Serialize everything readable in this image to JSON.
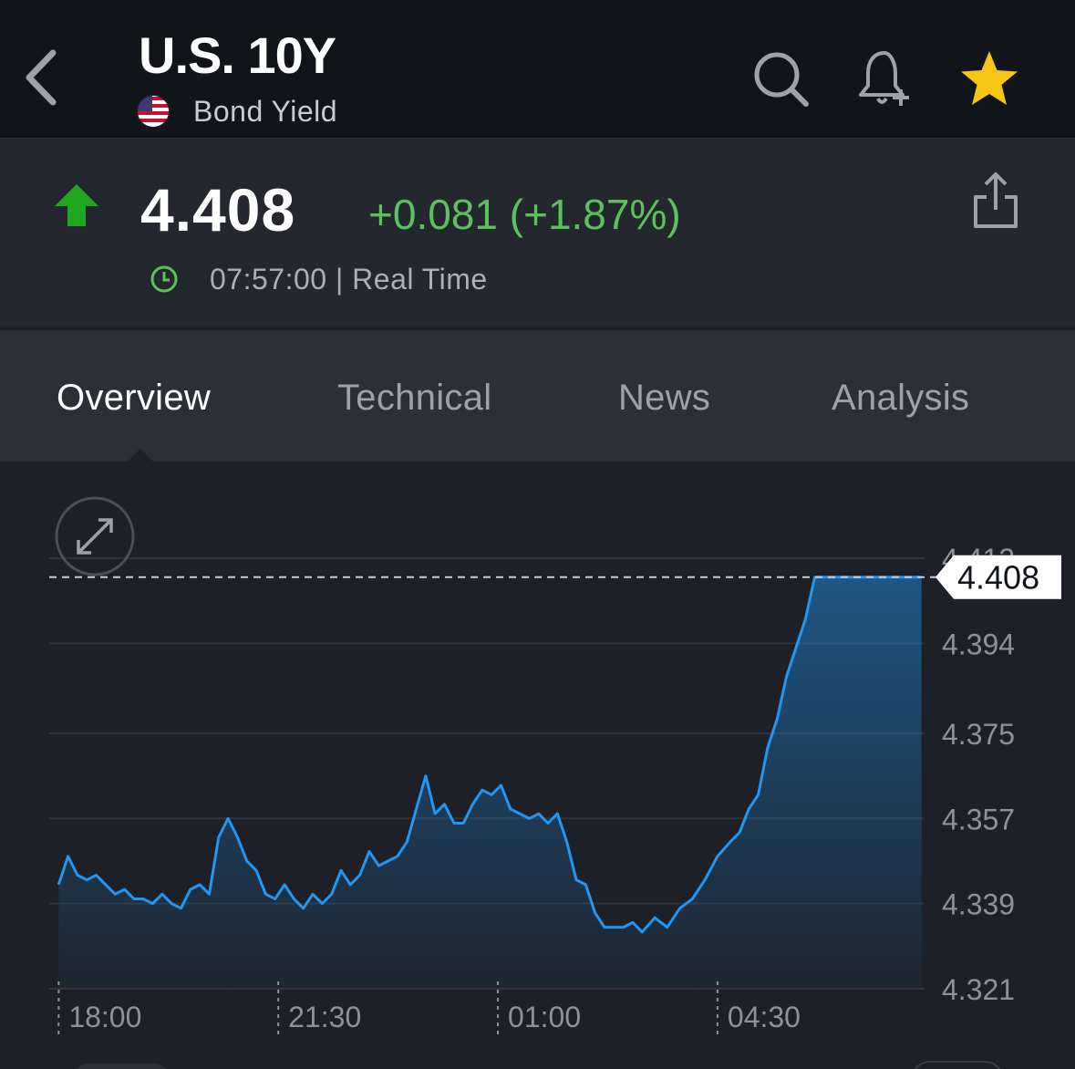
{
  "header": {
    "title": "U.S. 10Y",
    "subtitle": "Bond Yield",
    "icons": {
      "back": "chevron-left-icon",
      "search": "search-icon",
      "alert": "bell-plus-icon",
      "favorite": "star-icon"
    },
    "favorite_color": "#f5c518"
  },
  "quote": {
    "price": "4.408",
    "change": "+0.081 (+1.87%)",
    "time": "07:57:00 | Real Time",
    "direction": "up",
    "up_color": "#1fa51f",
    "change_color": "#5cc15c"
  },
  "tabs": [
    {
      "label": "Overview",
      "active": true
    },
    {
      "label": "Technical",
      "active": false
    },
    {
      "label": "News",
      "active": false
    },
    {
      "label": "Analysis",
      "active": false
    }
  ],
  "chart_data": {
    "type": "area",
    "x_tick_labels": [
      "18:00",
      "21:30",
      "01:00",
      "04:30"
    ],
    "x_ticks": [
      0,
      3.5,
      7.0,
      10.5
    ],
    "x_range": [
      -0.15,
      13.8
    ],
    "y_tick_labels": [
      "4.412",
      "4.394",
      "4.375",
      "4.357",
      "4.339",
      "4.321"
    ],
    "ylim": [
      4.321,
      4.412
    ],
    "last_value_label": "4.408",
    "line_color": "#2196f3",
    "grid": true,
    "series": [
      {
        "x": [
          0,
          0.15,
          0.3,
          0.45,
          0.6,
          0.75,
          0.9,
          1.05,
          1.2,
          1.35,
          1.5,
          1.65,
          1.8,
          1.95,
          2.1,
          2.25,
          2.4,
          2.55,
          2.7,
          2.85,
          3.0,
          3.15,
          3.3,
          3.45,
          3.6,
          3.75,
          3.9,
          4.05,
          4.2,
          4.35,
          4.5,
          4.65,
          4.8,
          4.95,
          5.1,
          5.25,
          5.4,
          5.55,
          5.7,
          5.85,
          6.0,
          6.15,
          6.3,
          6.45,
          6.6,
          6.75,
          6.9,
          7.05,
          7.2,
          7.35,
          7.5,
          7.65,
          7.8,
          7.95,
          8.1,
          8.25,
          8.4,
          8.55,
          8.7,
          8.85,
          9.0,
          9.15,
          9.3,
          9.5,
          9.7,
          9.9,
          10.1,
          10.3,
          10.5,
          10.7,
          10.85,
          11.0,
          11.15,
          11.3,
          11.45,
          11.6,
          11.75,
          11.9,
          12.05,
          12.2,
          12.35,
          12.5,
          12.65,
          12.8,
          12.95,
          13.05,
          13.15,
          13.25,
          13.35,
          13.45,
          13.6,
          13.75
        ],
        "y": [
          4.343,
          4.349,
          4.345,
          4.344,
          4.345,
          4.343,
          4.341,
          4.342,
          4.34,
          4.34,
          4.339,
          4.341,
          4.339,
          4.338,
          4.342,
          4.343,
          4.341,
          4.353,
          4.357,
          4.353,
          4.348,
          4.346,
          4.341,
          4.34,
          4.343,
          4.34,
          4.338,
          4.341,
          4.339,
          4.341,
          4.346,
          4.343,
          4.345,
          4.35,
          4.347,
          4.348,
          4.349,
          4.352,
          4.359,
          4.366,
          4.358,
          4.36,
          4.356,
          4.356,
          4.36,
          4.363,
          4.362,
          4.364,
          4.359,
          4.358,
          4.357,
          4.358,
          4.356,
          4.358,
          4.352,
          4.344,
          4.343,
          4.337,
          4.334,
          4.334,
          4.334,
          4.335,
          4.333,
          4.336,
          4.334,
          4.338,
          4.34,
          4.344,
          4.349,
          4.352,
          4.354,
          4.359,
          4.362,
          4.372,
          4.378,
          4.387,
          4.393,
          4.399,
          4.408,
          4.408,
          4.408,
          4.408,
          4.408,
          4.408,
          4.408,
          4.408,
          4.408,
          4.408,
          4.408,
          4.408,
          4.408,
          4.408
        ]
      }
    ]
  }
}
